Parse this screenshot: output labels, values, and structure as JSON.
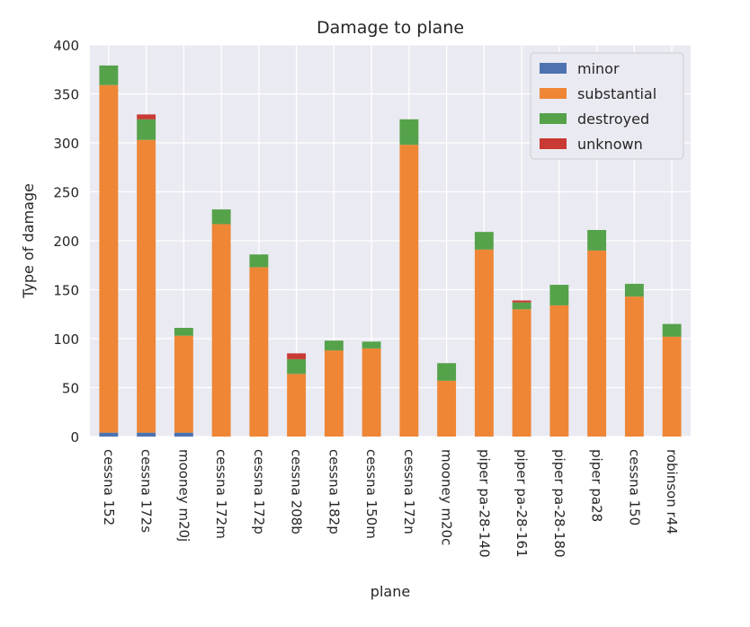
{
  "chart_data": {
    "type": "bar",
    "stacked": true,
    "title": "Damage to plane",
    "xlabel": "plane",
    "ylabel": "Type of damage",
    "ylim": [
      0,
      400
    ],
    "yticks": [
      0,
      50,
      100,
      150,
      200,
      250,
      300,
      350,
      400
    ],
    "grid": true,
    "legend_position": "top-right",
    "categories": [
      "cessna 152",
      "cessna 172s",
      "mooney m20j",
      "cessna 172m",
      "cessna 172p",
      "cessna 208b",
      "cessna 182p",
      "cessna 150m",
      "cessna 172n",
      "mooney m20c",
      "piper pa-28-140",
      "piper pa-28-161",
      "piper pa-28-180",
      "piper pa28",
      "cessna 150",
      "robinson r44"
    ],
    "series": [
      {
        "name": "minor",
        "color": "#4c72b0",
        "values": [
          4,
          4,
          4,
          0,
          0,
          0,
          0,
          0,
          0,
          0,
          0,
          0,
          0,
          0,
          0,
          0
        ]
      },
      {
        "name": "substantial",
        "color": "#ee8636",
        "values": [
          355,
          299,
          99,
          217,
          173,
          64,
          88,
          90,
          298,
          57,
          191,
          130,
          134,
          190,
          143,
          102
        ]
      },
      {
        "name": "destroyed",
        "color": "#55a24a",
        "values": [
          20,
          21,
          8,
          15,
          13,
          15,
          10,
          7,
          26,
          18,
          18,
          7,
          21,
          21,
          13,
          13
        ]
      },
      {
        "name": "unknown",
        "color": "#c83a33",
        "values": [
          0,
          5,
          0,
          0,
          0,
          6,
          0,
          0,
          0,
          0,
          0,
          2,
          0,
          0,
          0,
          0
        ]
      }
    ]
  }
}
